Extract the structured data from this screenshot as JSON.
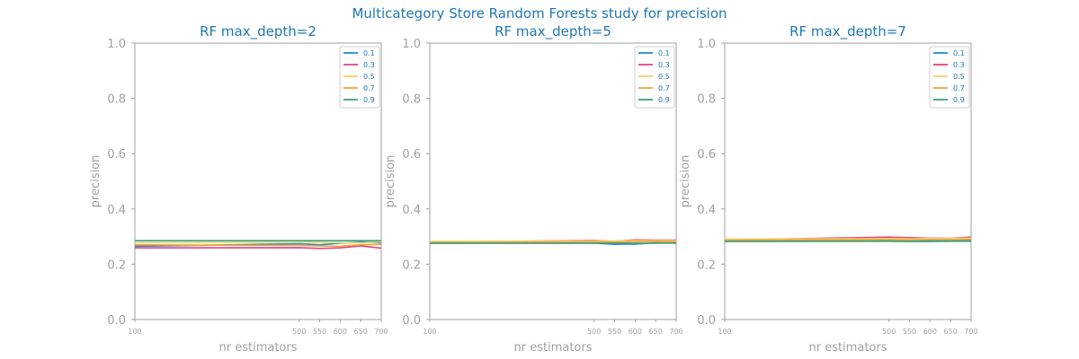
{
  "suptitle": "Multicategory Store Random Forests study for precision",
  "chart_data": [
    {
      "type": "line",
      "title": "RF max_depth=2",
      "xlabel": "nr estimators",
      "ylabel": "precision",
      "x": [
        100,
        500,
        550,
        600,
        650,
        700
      ],
      "xticks": [
        "100",
        "500",
        "550",
        "600",
        "650",
        "700"
      ],
      "ylim": [
        0.0,
        1.0
      ],
      "yticks": [
        "0.0",
        "0.2",
        "0.4",
        "0.6",
        "0.8",
        "1.0"
      ],
      "grid": false,
      "legend": "top-right",
      "series": [
        {
          "name": "0.1",
          "color": "#1f8fd6",
          "values": [
            0.265,
            0.274,
            0.27,
            0.276,
            0.28,
            0.278
          ]
        },
        {
          "name": "0.3",
          "color": "#e6437d",
          "values": [
            0.259,
            0.26,
            0.257,
            0.259,
            0.266,
            0.258
          ]
        },
        {
          "name": "0.5",
          "color": "#f2d36b",
          "values": [
            0.278,
            0.28,
            0.279,
            0.278,
            0.277,
            0.281
          ]
        },
        {
          "name": "0.7",
          "color": "#f0a33a",
          "values": [
            0.27,
            0.268,
            0.266,
            0.265,
            0.27,
            0.272
          ]
        },
        {
          "name": "0.9",
          "color": "#3fa07a",
          "values": [
            0.285,
            0.285,
            0.285,
            0.285,
            0.285,
            0.285
          ]
        }
      ]
    },
    {
      "type": "line",
      "title": "RF max_depth=5",
      "xlabel": "nr estimators",
      "ylabel": "precision",
      "x": [
        100,
        500,
        550,
        600,
        650,
        700
      ],
      "xticks": [
        "100",
        "500",
        "550",
        "600",
        "650",
        "700"
      ],
      "ylim": [
        0.0,
        1.0
      ],
      "yticks": [
        "0.0",
        "0.2",
        "0.4",
        "0.6",
        "0.8",
        "1.0"
      ],
      "grid": false,
      "legend": "top-right",
      "series": [
        {
          "name": "0.1",
          "color": "#1f8fd6",
          "values": [
            0.276,
            0.276,
            0.272,
            0.273,
            0.277,
            0.276
          ]
        },
        {
          "name": "0.3",
          "color": "#e6437d",
          "values": [
            0.28,
            0.286,
            0.283,
            0.288,
            0.287,
            0.287
          ]
        },
        {
          "name": "0.5",
          "color": "#f2d36b",
          "values": [
            0.282,
            0.284,
            0.284,
            0.285,
            0.285,
            0.285
          ]
        },
        {
          "name": "0.7",
          "color": "#f0a33a",
          "values": [
            0.279,
            0.281,
            0.28,
            0.281,
            0.282,
            0.281
          ]
        },
        {
          "name": "0.9",
          "color": "#3fa07a",
          "values": [
            0.276,
            0.276,
            0.276,
            0.276,
            0.276,
            0.277
          ]
        }
      ]
    },
    {
      "type": "line",
      "title": "RF max_depth=7",
      "xlabel": "nr estimators",
      "ylabel": "precision",
      "x": [
        100,
        500,
        550,
        600,
        650,
        700
      ],
      "xticks": [
        "100",
        "500",
        "550",
        "600",
        "650",
        "700"
      ],
      "ylim": [
        0.0,
        1.0
      ],
      "yticks": [
        "0.0",
        "0.2",
        "0.4",
        "0.6",
        "0.8",
        "1.0"
      ],
      "grid": false,
      "legend": "top-right",
      "series": [
        {
          "name": "0.1",
          "color": "#1f8fd6",
          "values": [
            0.284,
            0.285,
            0.284,
            0.285,
            0.285,
            0.285
          ]
        },
        {
          "name": "0.3",
          "color": "#e6437d",
          "values": [
            0.288,
            0.298,
            0.296,
            0.294,
            0.294,
            0.298
          ]
        },
        {
          "name": "0.5",
          "color": "#f2d36b",
          "values": [
            0.291,
            0.293,
            0.292,
            0.293,
            0.294,
            0.294
          ]
        },
        {
          "name": "0.7",
          "color": "#f0a33a",
          "values": [
            0.287,
            0.289,
            0.288,
            0.289,
            0.289,
            0.29
          ]
        },
        {
          "name": "0.9",
          "color": "#3fa07a",
          "values": [
            0.282,
            0.283,
            0.282,
            0.282,
            0.283,
            0.283
          ]
        }
      ]
    }
  ]
}
